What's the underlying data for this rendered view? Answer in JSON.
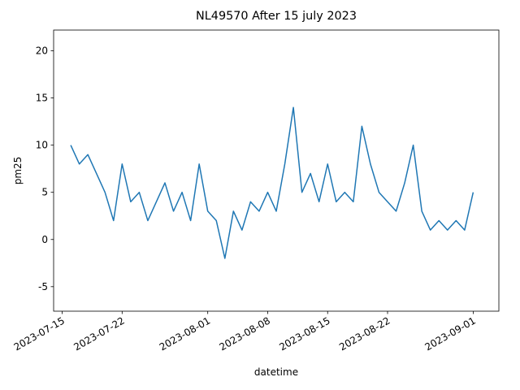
{
  "chart_data": {
    "type": "line",
    "title": "NL49570 After 15 july 2023",
    "x_label": "datetime",
    "y_label": "pm25",
    "x": [
      "2023-07-16",
      "2023-07-17",
      "2023-07-18",
      "2023-07-19",
      "2023-07-20",
      "2023-07-21",
      "2023-07-22",
      "2023-07-23",
      "2023-07-24",
      "2023-07-25",
      "2023-07-26",
      "2023-07-27",
      "2023-07-28",
      "2023-07-29",
      "2023-07-30",
      "2023-07-31",
      "2023-08-01",
      "2023-08-02",
      "2023-08-03",
      "2023-08-04",
      "2023-08-05",
      "2023-08-06",
      "2023-08-07",
      "2023-08-08",
      "2023-08-09",
      "2023-08-10",
      "2023-08-11",
      "2023-08-12",
      "2023-08-13",
      "2023-08-14",
      "2023-08-15",
      "2023-08-16",
      "2023-08-17",
      "2023-08-18",
      "2023-08-19",
      "2023-08-20",
      "2023-08-21",
      "2023-08-22",
      "2023-08-23",
      "2023-08-24",
      "2023-08-25",
      "2023-08-26",
      "2023-08-27",
      "2023-08-28",
      "2023-08-29",
      "2023-08-30",
      "2023-08-31",
      "2023-09-01"
    ],
    "series": [
      {
        "name": "pm25",
        "color": "#1f77b4",
        "values": [
          10,
          8,
          9,
          7,
          5,
          2,
          8,
          4,
          5,
          2,
          4,
          6,
          3,
          5,
          2,
          8,
          3,
          2,
          -2,
          3,
          1,
          4,
          3,
          5,
          3,
          8,
          14,
          5,
          7,
          4,
          8,
          4,
          5,
          4,
          12,
          8,
          5,
          4,
          3,
          6,
          10,
          3,
          1,
          2,
          1,
          2,
          1,
          5
        ]
      }
    ],
    "xlim": [
      "2023-07-14",
      "2023-09-04"
    ],
    "xticks": [
      "2023-07-15",
      "2023-07-22",
      "2023-08-01",
      "2023-08-08",
      "2023-08-15",
      "2023-08-22",
      "2023-09-01"
    ],
    "ylim": [
      -7.6,
      22.2
    ],
    "yticks": [
      -5,
      0,
      5,
      10,
      15,
      20
    ]
  }
}
